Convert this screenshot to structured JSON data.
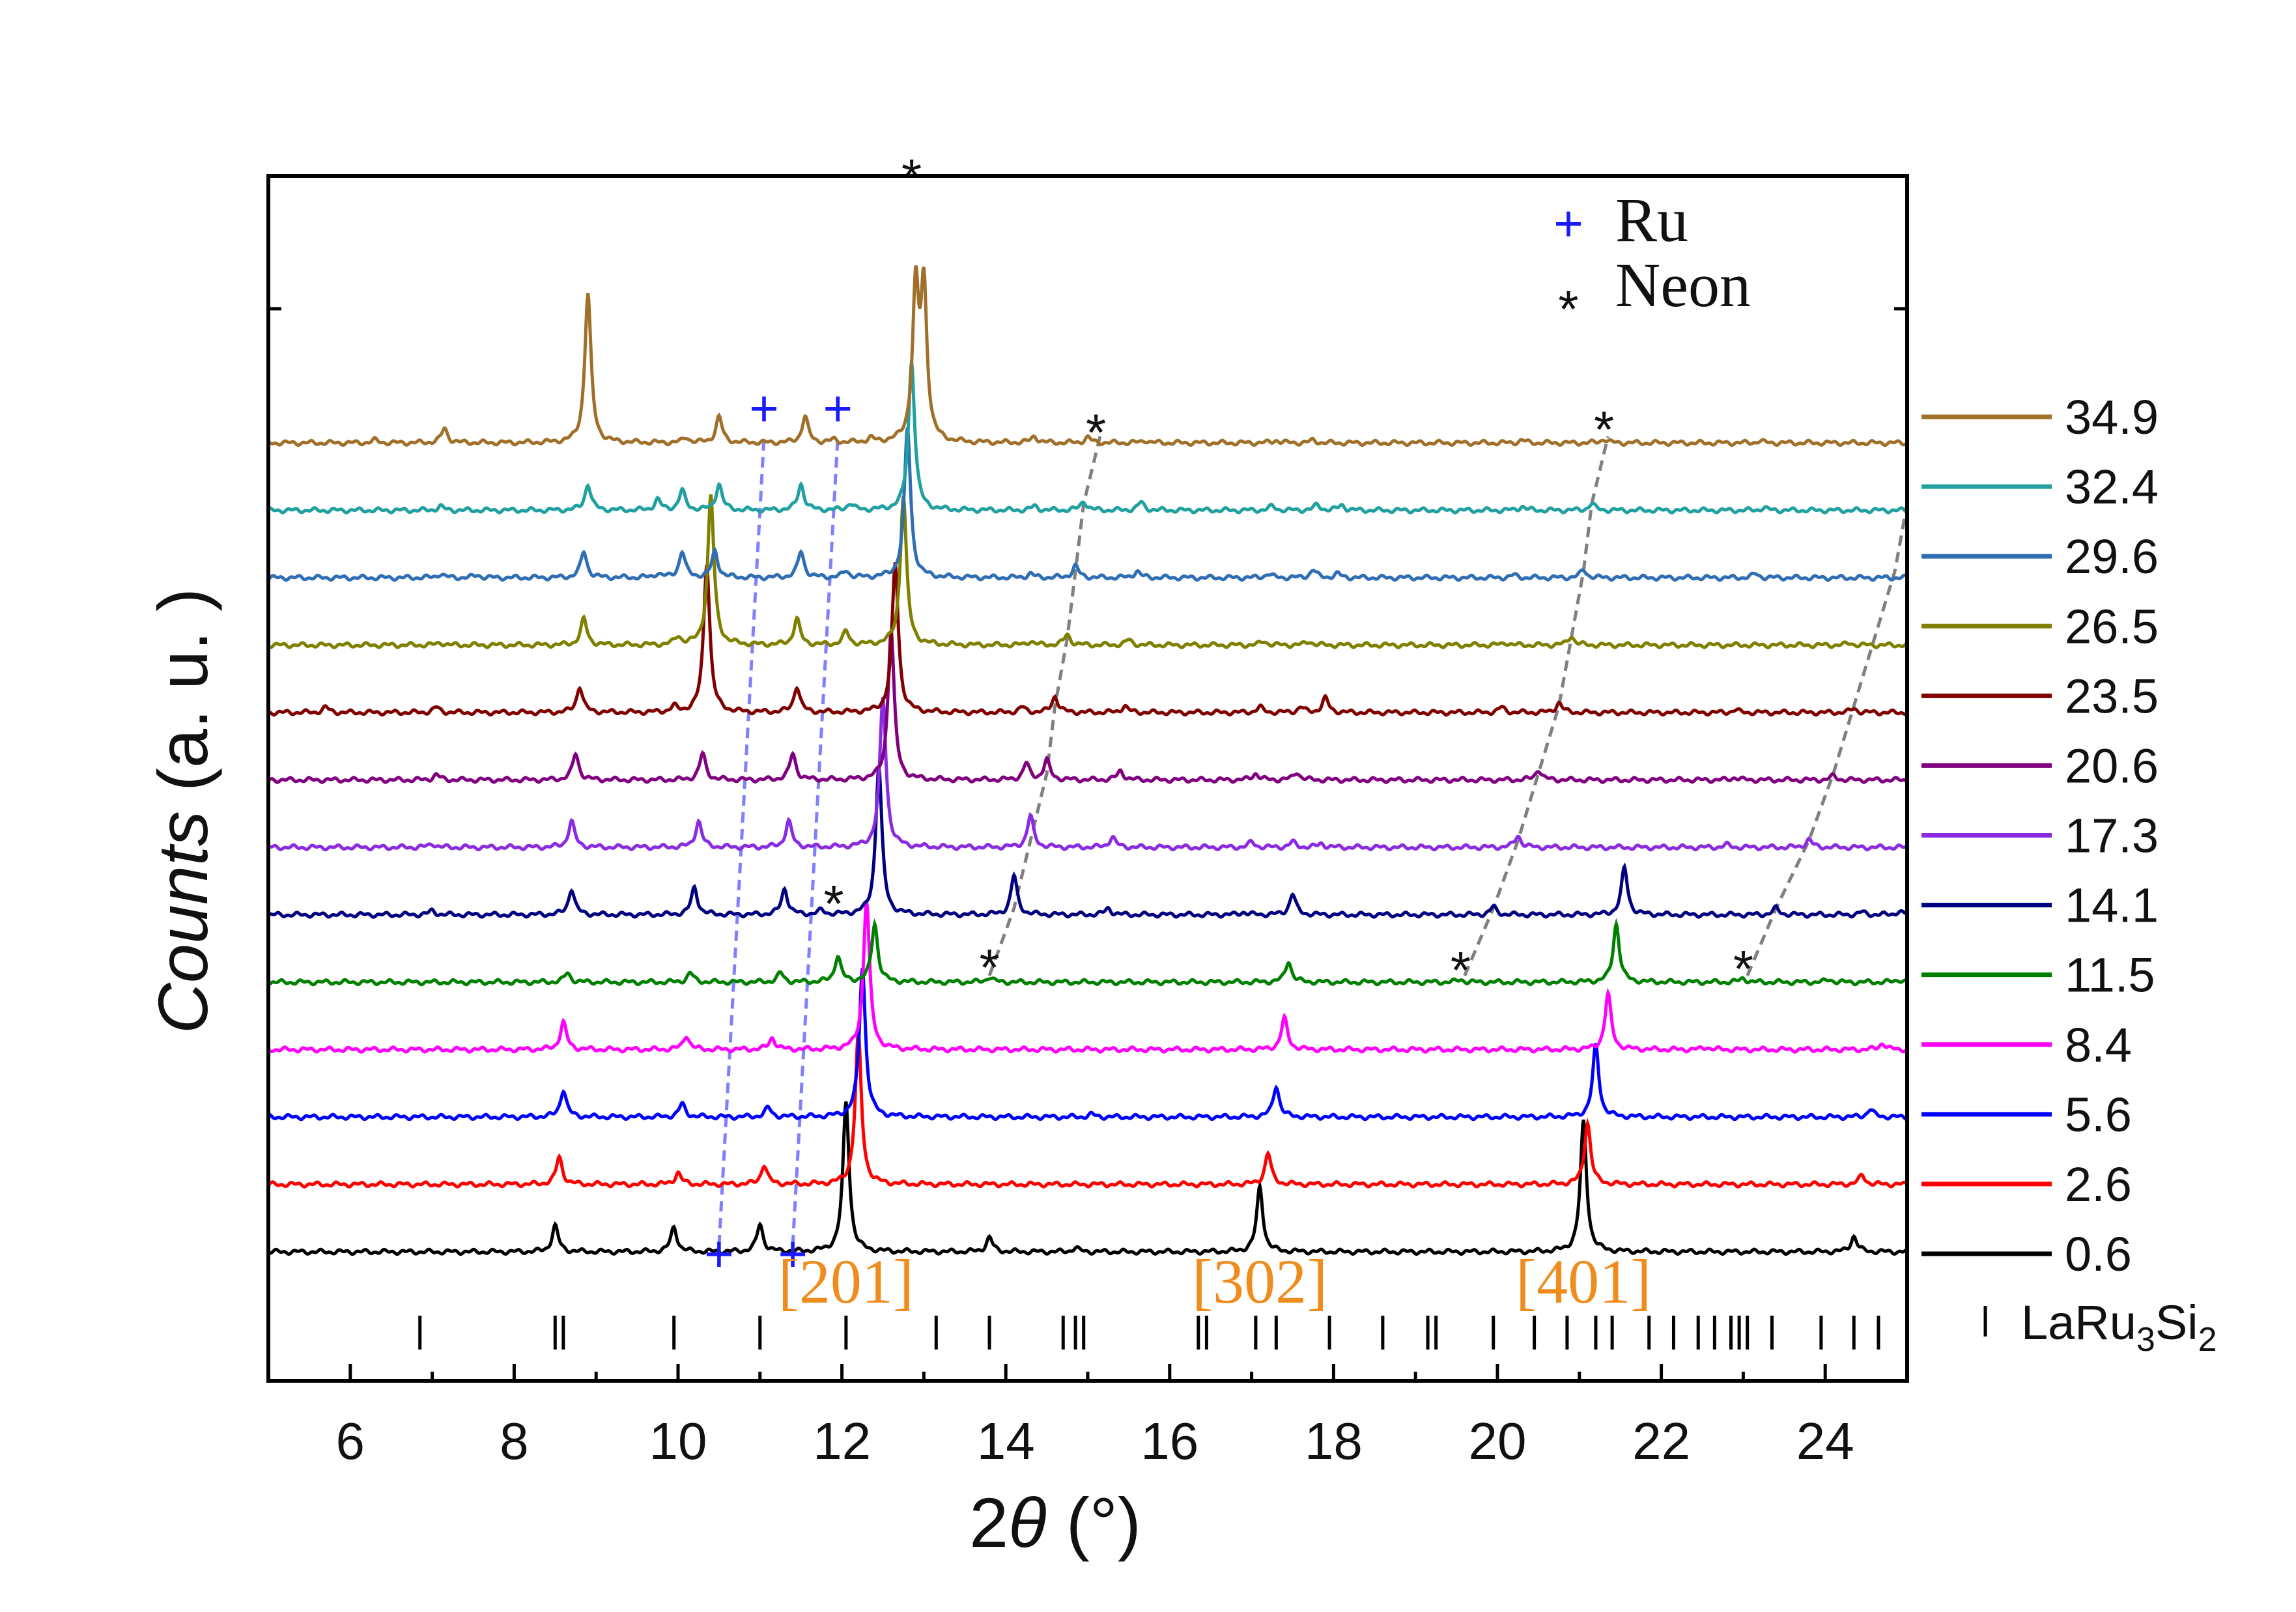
{
  "chart_data": {
    "type": "line",
    "title": "",
    "xlabel_prefix": "2",
    "xlabel_theta": "θ",
    "xlabel_suffix": " (°)",
    "ylabel_italic": "Counts",
    "ylabel_rest": " (a. u. )",
    "xlim": [
      5,
      25
    ],
    "xticks": [
      6,
      8,
      10,
      12,
      14,
      16,
      18,
      20,
      22,
      24
    ],
    "legend_title_placement": "right",
    "series": [
      {
        "name": "0.6",
        "color": "#000000",
        "peaks": [
          [
            8.5,
            40
          ],
          [
            9.95,
            38
          ],
          [
            11.0,
            42
          ],
          [
            12.05,
            230
          ],
          [
            13.8,
            22
          ],
          [
            14.85,
            6
          ],
          [
            17.1,
            100
          ],
          [
            21.05,
            200
          ],
          [
            24.35,
            24
          ]
        ]
      },
      {
        "name": "2.6",
        "color": "#ff0000",
        "peaks": [
          [
            8.55,
            42
          ],
          [
            10.0,
            18
          ],
          [
            11.05,
            30
          ],
          [
            12.2,
            230
          ],
          [
            17.2,
            48
          ],
          [
            21.1,
            95
          ],
          [
            24.45,
            14
          ]
        ]
      },
      {
        "name": "5.6",
        "color": "#0000ff",
        "peaks": [
          [
            8.6,
            42
          ],
          [
            10.05,
            20
          ],
          [
            11.1,
            14
          ],
          [
            12.25,
            230
          ],
          [
            15.05,
            4
          ],
          [
            17.3,
            48
          ],
          [
            21.2,
            110
          ],
          [
            24.55,
            12
          ]
        ]
      },
      {
        "name": "8.4",
        "color": "#ff00ff",
        "peaks": [
          [
            8.6,
            42
          ],
          [
            10.1,
            22
          ],
          [
            11.15,
            18
          ],
          [
            12.3,
            230
          ],
          [
            17.4,
            48
          ],
          [
            21.35,
            85
          ],
          [
            22.55,
            4
          ],
          [
            24.7,
            10
          ]
        ]
      },
      {
        "name": "11.5",
        "color": "#008000",
        "peaks": [
          [
            8.65,
            14
          ],
          [
            10.15,
            14
          ],
          [
            11.25,
            14
          ],
          [
            11.95,
            40
          ],
          [
            12.4,
            90
          ],
          [
            13.8,
            8
          ],
          [
            17.45,
            32
          ],
          [
            19.55,
            4
          ],
          [
            21.45,
            90
          ],
          [
            23.0,
            6
          ],
          [
            24.05,
            4
          ],
          [
            24.9,
            4
          ]
        ]
      },
      {
        "name": "14.1",
        "color": "#000080",
        "peaks": [
          [
            7.0,
            6
          ],
          [
            8.7,
            40
          ],
          [
            10.2,
            42
          ],
          [
            11.3,
            40
          ],
          [
            11.75,
            6
          ],
          [
            12.45,
            230
          ],
          [
            14.1,
            60
          ],
          [
            15.25,
            10
          ],
          [
            16.9,
            4
          ],
          [
            17.5,
            32
          ],
          [
            19.95,
            12
          ],
          [
            21.55,
            72
          ],
          [
            23.4,
            10
          ],
          [
            24.45,
            4
          ],
          [
            24.9,
            5
          ]
        ]
      },
      {
        "name": "17.3",
        "color": "#8a2be2",
        "peaks": [
          [
            7.0,
            6
          ],
          [
            8.7,
            40
          ],
          [
            10.25,
            40
          ],
          [
            11.35,
            40
          ],
          [
            12.5,
            230
          ],
          [
            14.3,
            48
          ],
          [
            15.3,
            16
          ],
          [
            17.0,
            8
          ],
          [
            17.5,
            8
          ],
          [
            17.85,
            6
          ],
          [
            20.25,
            18
          ],
          [
            22.8,
            4
          ],
          [
            23.8,
            12
          ]
        ]
      },
      {
        "name": "20.6",
        "color": "#800080",
        "peaks": [
          [
            7.05,
            8
          ],
          [
            8.75,
            40
          ],
          [
            10.3,
            40
          ],
          [
            11.4,
            40
          ],
          [
            12.6,
            230
          ],
          [
            14.25,
            25
          ],
          [
            14.5,
            30
          ],
          [
            15.4,
            14
          ],
          [
            17.05,
            10
          ],
          [
            17.55,
            12
          ],
          [
            20.5,
            16
          ],
          [
            22.9,
            4
          ],
          [
            24.1,
            6
          ]
        ]
      },
      {
        "name": "23.5",
        "color": "#800000",
        "peaks": [
          [
            5.7,
            8
          ],
          [
            7.05,
            8
          ],
          [
            8.8,
            40
          ],
          [
            9.95,
            8
          ],
          [
            10.35,
            230
          ],
          [
            11.45,
            40
          ],
          [
            12.65,
            230
          ],
          [
            14.2,
            8
          ],
          [
            14.6,
            25
          ],
          [
            15.45,
            10
          ],
          [
            17.1,
            8
          ],
          [
            17.6,
            8
          ],
          [
            17.9,
            22
          ],
          [
            20.05,
            8
          ],
          [
            20.75,
            15
          ],
          [
            22.9,
            4
          ],
          [
            24.35,
            6
          ]
        ]
      },
      {
        "name": "26.5",
        "color": "#808000",
        "peaks": [
          [
            7.1,
            4
          ],
          [
            8.85,
            40
          ],
          [
            10.0,
            12
          ],
          [
            10.4,
            230
          ],
          [
            11.45,
            40
          ],
          [
            12.05,
            20
          ],
          [
            12.75,
            230
          ],
          [
            14.3,
            6
          ],
          [
            14.75,
            16
          ],
          [
            15.5,
            8
          ],
          [
            17.15,
            6
          ],
          [
            17.7,
            6
          ],
          [
            20.1,
            4
          ],
          [
            20.9,
            14
          ],
          [
            24.3,
            3
          ]
        ]
      },
      {
        "name": "29.6",
        "color": "#2f6eb4",
        "peaks": [
          [
            7.1,
            6
          ],
          [
            7.55,
            4
          ],
          [
            8.85,
            40
          ],
          [
            9.75,
            6
          ],
          [
            10.05,
            40
          ],
          [
            10.45,
            40
          ],
          [
            11.5,
            40
          ],
          [
            12.05,
            10
          ],
          [
            12.8,
            230
          ],
          [
            14.3,
            6
          ],
          [
            14.85,
            18
          ],
          [
            15.6,
            10
          ],
          [
            17.2,
            6
          ],
          [
            17.75,
            12
          ],
          [
            18.05,
            6
          ],
          [
            20.2,
            4
          ],
          [
            21.05,
            12
          ],
          [
            23.15,
            6
          ]
        ]
      },
      {
        "name": "32.4",
        "color": "#20a0a0",
        "peaks": [
          [
            7.1,
            6
          ],
          [
            8.9,
            40
          ],
          [
            9.75,
            16
          ],
          [
            10.05,
            30
          ],
          [
            10.5,
            40
          ],
          [
            11.5,
            40
          ],
          [
            12.1,
            10
          ],
          [
            12.85,
            230
          ],
          [
            14.35,
            6
          ],
          [
            14.95,
            14
          ],
          [
            15.65,
            12
          ],
          [
            17.25,
            6
          ],
          [
            17.8,
            8
          ],
          [
            18.1,
            8
          ],
          [
            20.3,
            6
          ],
          [
            21.15,
            10
          ],
          [
            23.25,
            4
          ]
        ]
      },
      {
        "name": "34.9",
        "color": "#a0702a",
        "peaks": [
          [
            6.3,
            4
          ],
          [
            7.15,
            22
          ],
          [
            8.9,
            230
          ],
          [
            10.1,
            8
          ],
          [
            10.5,
            40
          ],
          [
            11.55,
            40
          ],
          [
            11.9,
            4
          ],
          [
            12.35,
            6
          ],
          [
            12.9,
            230
          ],
          [
            13.0,
            230
          ],
          [
            14.35,
            10
          ],
          [
            15.0,
            8
          ],
          [
            15.7,
            4
          ],
          [
            17.3,
            4
          ],
          [
            17.75,
            4
          ],
          [
            20.3,
            4
          ],
          [
            21.3,
            6
          ],
          [
            23.2,
            3
          ]
        ]
      }
    ],
    "reference_label_main": "LaRu",
    "reference_label_sub1": "3",
    "reference_label_mid": "Si",
    "reference_label_sub2": "2",
    "reference_ticks": [
      6.85,
      8.5,
      8.6,
      9.95,
      11.0,
      12.05,
      13.15,
      13.8,
      14.7,
      14.85,
      14.95,
      16.35,
      16.45,
      17.05,
      17.3,
      17.95,
      18.6,
      19.15,
      19.25,
      19.95,
      20.45,
      20.85,
      21.2,
      21.4,
      21.85,
      22.15,
      22.45,
      22.65,
      22.85,
      22.95,
      23.05,
      23.35,
      23.95,
      24.35,
      24.65
    ],
    "miller_indices": [
      {
        "label": "[201]",
        "x": 12.05
      },
      {
        "label": "[302]",
        "x": 17.1
      },
      {
        "label": "[401]",
        "x": 21.05
      }
    ],
    "annotation_legend": [
      {
        "symbol": "+",
        "text": "Ru"
      },
      {
        "symbol": "*",
        "text": "Neon"
      }
    ],
    "ru_markers": [
      {
        "x": 10.5,
        "series": "0.6"
      },
      {
        "x": 11.4,
        "series": "0.6"
      },
      {
        "x": 11.05,
        "series": "34.9"
      },
      {
        "x": 11.95,
        "series": "34.9"
      }
    ],
    "neon_markers": [
      {
        "x": 12.85,
        "series": "top"
      },
      {
        "x": 15.1,
        "series": "34.9"
      },
      {
        "x": 21.3,
        "series": "34.9"
      },
      {
        "x": 11.9,
        "series": "14.1"
      },
      {
        "x": 13.8,
        "series": "11.5"
      },
      {
        "x": 19.55,
        "series": "11.5"
      },
      {
        "x": 23.0,
        "series": "11.5"
      }
    ],
    "guide_lines": [
      {
        "color": "#8080ff",
        "points": [
          [
            10.5,
            "0.6"
          ],
          [
            11.05,
            "34.9"
          ]
        ]
      },
      {
        "color": "#8080ff",
        "points": [
          [
            11.4,
            "0.6"
          ],
          [
            11.95,
            "34.9"
          ]
        ]
      },
      {
        "color": "#808080",
        "points": [
          [
            13.8,
            "11.5"
          ],
          [
            14.1,
            "14.1"
          ],
          [
            14.3,
            "17.3"
          ],
          [
            14.5,
            "20.6"
          ],
          [
            14.6,
            "23.5"
          ],
          [
            14.75,
            "26.5"
          ],
          [
            14.85,
            "29.6"
          ],
          [
            14.95,
            "32.4"
          ],
          [
            15.15,
            "34.9"
          ]
        ]
      },
      {
        "color": "#808080",
        "points": [
          [
            19.6,
            "11.5"
          ],
          [
            19.95,
            "14.1"
          ],
          [
            20.25,
            "17.3"
          ],
          [
            20.5,
            "20.6"
          ],
          [
            20.75,
            "23.5"
          ],
          [
            20.9,
            "26.5"
          ],
          [
            21.05,
            "29.6"
          ],
          [
            21.15,
            "32.4"
          ],
          [
            21.35,
            "34.9"
          ]
        ]
      },
      {
        "color": "#808080",
        "points": [
          [
            23.05,
            "11.5"
          ],
          [
            23.4,
            "14.1"
          ],
          [
            23.8,
            "17.3"
          ],
          [
            24.1,
            "20.6"
          ],
          [
            24.35,
            "23.5"
          ],
          [
            24.6,
            "26.5"
          ],
          [
            24.85,
            "29.6"
          ],
          [
            25.0,
            "32.4"
          ]
        ]
      }
    ]
  }
}
